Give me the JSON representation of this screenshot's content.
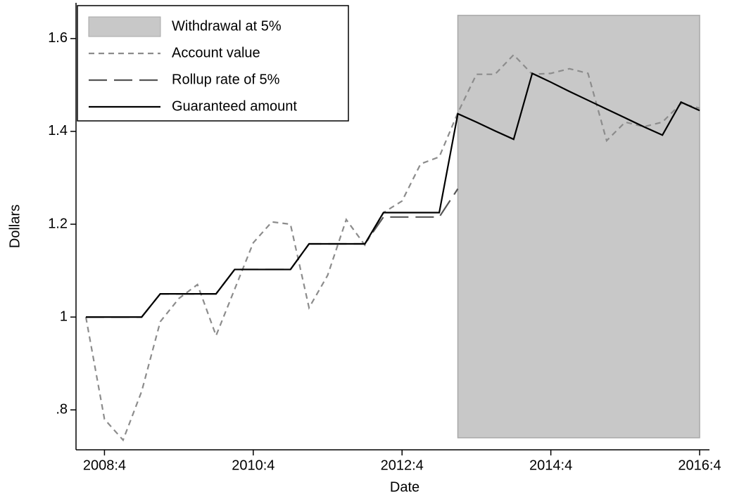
{
  "chart_data": {
    "type": "line",
    "x_label": "Date",
    "y_label": "Dollars",
    "categories": [
      null,
      "2008:4",
      null,
      null,
      null,
      null,
      null,
      null,
      null,
      "2010:4",
      null,
      null,
      null,
      null,
      null,
      null,
      null,
      "2012:4",
      null,
      null,
      null,
      null,
      null,
      null,
      null,
      "2014:4",
      null,
      null,
      null,
      null,
      null,
      null,
      null,
      "2016:4"
    ],
    "ylim": [
      0.714,
      1.677
    ],
    "yticks": [
      {
        "value": 0.8,
        "label": ".8"
      },
      1,
      1.2,
      1.4,
      1.6
    ],
    "legend": "top-left",
    "series": [
      {
        "name": "Withdrawal at 5%",
        "kind": "area",
        "color": "#c8c8c8",
        "base": 0.74,
        "values": [
          null,
          null,
          null,
          null,
          null,
          null,
          null,
          null,
          null,
          null,
          null,
          null,
          null,
          null,
          null,
          null,
          null,
          null,
          null,
          null,
          1.65,
          1.65,
          1.65,
          1.65,
          1.65,
          1.65,
          1.65,
          1.65,
          1.65,
          1.65,
          1.65,
          1.65,
          1.65,
          1.65
        ]
      },
      {
        "name": "Account value",
        "kind": "line",
        "dash": "short",
        "color": "#8c8c8c",
        "values": [
          1.0,
          0.78,
          0.735,
          0.84,
          0.99,
          1.04,
          1.07,
          0.96,
          1.06,
          1.16,
          1.205,
          1.2,
          1.02,
          1.09,
          1.21,
          1.155,
          1.225,
          1.25,
          1.33,
          1.345,
          1.44,
          1.523,
          1.523,
          1.565,
          1.523,
          1.525,
          1.535,
          1.525,
          1.38,
          1.42,
          1.41,
          1.42,
          1.46,
          1.45
        ]
      },
      {
        "name": "Rollup rate of 5%",
        "kind": "line",
        "dash": "long",
        "color": "#555555",
        "values": [
          1.0,
          1.0,
          1.0,
          1.0,
          1.05,
          1.05,
          1.05,
          1.05,
          1.1025,
          1.1025,
          1.1025,
          1.1025,
          1.1576,
          1.1576,
          1.1576,
          1.1576,
          1.2155,
          1.2155,
          1.2155,
          1.2155,
          1.2763,
          null,
          null,
          null,
          null,
          null,
          null,
          null,
          null,
          null,
          null,
          null,
          null,
          null
        ]
      },
      {
        "name": "Guaranteed amount",
        "kind": "line",
        "dash": "solid",
        "color": "#000000",
        "values": [
          1.0,
          1.0,
          1.0,
          1.0,
          1.05,
          1.05,
          1.05,
          1.05,
          1.1025,
          1.1025,
          1.1025,
          1.1025,
          1.1576,
          1.1576,
          1.1576,
          1.1576,
          1.225,
          1.225,
          1.225,
          1.225,
          1.438,
          1.42,
          1.401,
          1.383,
          1.525,
          1.506,
          1.486,
          1.467,
          1.448,
          1.429,
          1.41,
          1.392,
          1.463,
          1.445
        ]
      }
    ]
  }
}
